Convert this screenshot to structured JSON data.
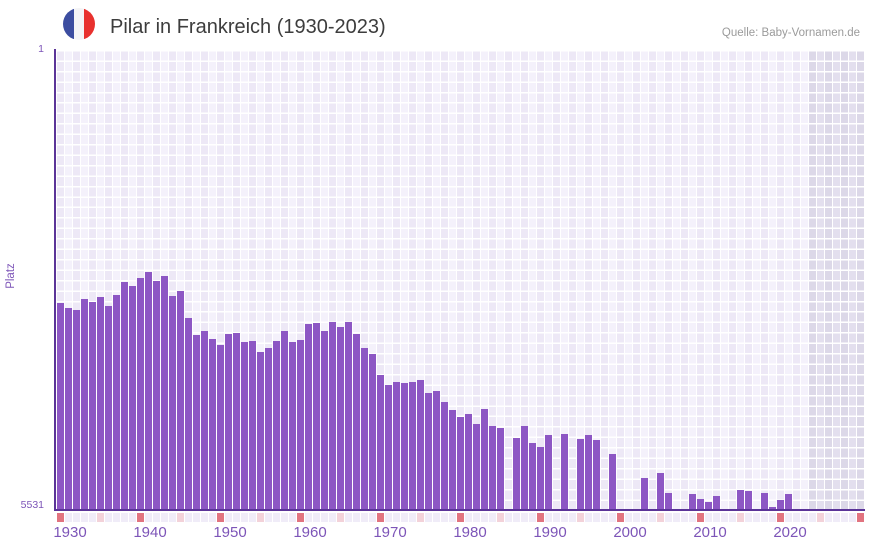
{
  "header": {
    "title": "Pilar in Frankreich (1930-2023)",
    "source": "Quelle: Baby-Vornamen.de",
    "flag_icon": "france-flag-icon",
    "flag_colors": {
      "blue": "#3c4da0",
      "white": "#f4f4f6",
      "red": "#e8312e"
    }
  },
  "chart_data": {
    "type": "bar",
    "title": "Pilar in Frankreich (1930-2023)",
    "ylabel": "Platz",
    "legend": null,
    "grid": true,
    "y_axis": {
      "min": 1,
      "max": 5531,
      "inverted": true,
      "tick_top": "1",
      "tick_bottom": "5531"
    },
    "x_axis": {
      "data_start": 1930,
      "data_end": 2023,
      "plot_end": 2030,
      "tick_labels": [
        "1930",
        "1940",
        "1950",
        "1960",
        "1970",
        "1980",
        "1990",
        "2000",
        "2010",
        "2020"
      ],
      "decade_tick_color": "#e1737f",
      "half_decade_tick_color": "#f3d2d9",
      "default_tick_color": "#f0ecf8"
    },
    "bar_color": "#8d57c4",
    "axis_color": "#5b3498",
    "label_color": "#7d55b8",
    "future_band_note": "no data after 2023",
    "values": [
      [
        1930,
        3042
      ],
      [
        1931,
        3102
      ],
      [
        1932,
        3126
      ],
      [
        1933,
        2994
      ],
      [
        1934,
        3030
      ],
      [
        1935,
        2970
      ],
      [
        1936,
        3078
      ],
      [
        1937,
        2946
      ],
      [
        1938,
        2790
      ],
      [
        1939,
        2838
      ],
      [
        1940,
        2742
      ],
      [
        1941,
        2670
      ],
      [
        1942,
        2778
      ],
      [
        1943,
        2718
      ],
      [
        1944,
        2958
      ],
      [
        1945,
        2898
      ],
      [
        1946,
        3222
      ],
      [
        1947,
        3427
      ],
      [
        1948,
        3379
      ],
      [
        1949,
        3475
      ],
      [
        1950,
        3547
      ],
      [
        1951,
        3415
      ],
      [
        1952,
        3403
      ],
      [
        1953,
        3511
      ],
      [
        1954,
        3499
      ],
      [
        1955,
        3631
      ],
      [
        1956,
        3583
      ],
      [
        1957,
        3499
      ],
      [
        1958,
        3379
      ],
      [
        1959,
        3511
      ],
      [
        1960,
        3487
      ],
      [
        1961,
        3298
      ],
      [
        1962,
        3282
      ],
      [
        1963,
        3379
      ],
      [
        1964,
        3270
      ],
      [
        1965,
        3327
      ],
      [
        1966,
        3270
      ],
      [
        1967,
        3415
      ],
      [
        1968,
        3580
      ],
      [
        1969,
        3655
      ],
      [
        1970,
        3908
      ],
      [
        1971,
        4028
      ],
      [
        1972,
        3988
      ],
      [
        1973,
        4004
      ],
      [
        1974,
        3992
      ],
      [
        1975,
        3968
      ],
      [
        1976,
        4120
      ],
      [
        1977,
        4096
      ],
      [
        1978,
        4229
      ],
      [
        1979,
        4328
      ],
      [
        1980,
        4416
      ],
      [
        1981,
        4376
      ],
      [
        1982,
        4500
      ],
      [
        1983,
        4320
      ],
      [
        1984,
        4517
      ],
      [
        1985,
        4548
      ],
      [
        1986,
        null
      ],
      [
        1987,
        4669
      ],
      [
        1988,
        4521
      ],
      [
        1989,
        4721
      ],
      [
        1990,
        4777
      ],
      [
        1991,
        4629
      ],
      [
        1992,
        null
      ],
      [
        1993,
        4621
      ],
      [
        1994,
        null
      ],
      [
        1995,
        4681
      ],
      [
        1996,
        4629
      ],
      [
        1997,
        4689
      ],
      [
        1998,
        null
      ],
      [
        1999,
        4857
      ],
      [
        2000,
        null
      ],
      [
        2001,
        null
      ],
      [
        2002,
        null
      ],
      [
        2003,
        5146
      ],
      [
        2004,
        null
      ],
      [
        2005,
        5089
      ],
      [
        2006,
        5322
      ],
      [
        2007,
        null
      ],
      [
        2008,
        null
      ],
      [
        2009,
        5338
      ],
      [
        2010,
        5398
      ],
      [
        2011,
        5434
      ],
      [
        2012,
        5362
      ],
      [
        2013,
        null
      ],
      [
        2014,
        null
      ],
      [
        2015,
        5290
      ],
      [
        2016,
        5302
      ],
      [
        2017,
        null
      ],
      [
        2018,
        5322
      ],
      [
        2019,
        5491
      ],
      [
        2020,
        5410
      ],
      [
        2021,
        5338
      ],
      [
        2022,
        null
      ],
      [
        2023,
        null
      ]
    ]
  }
}
